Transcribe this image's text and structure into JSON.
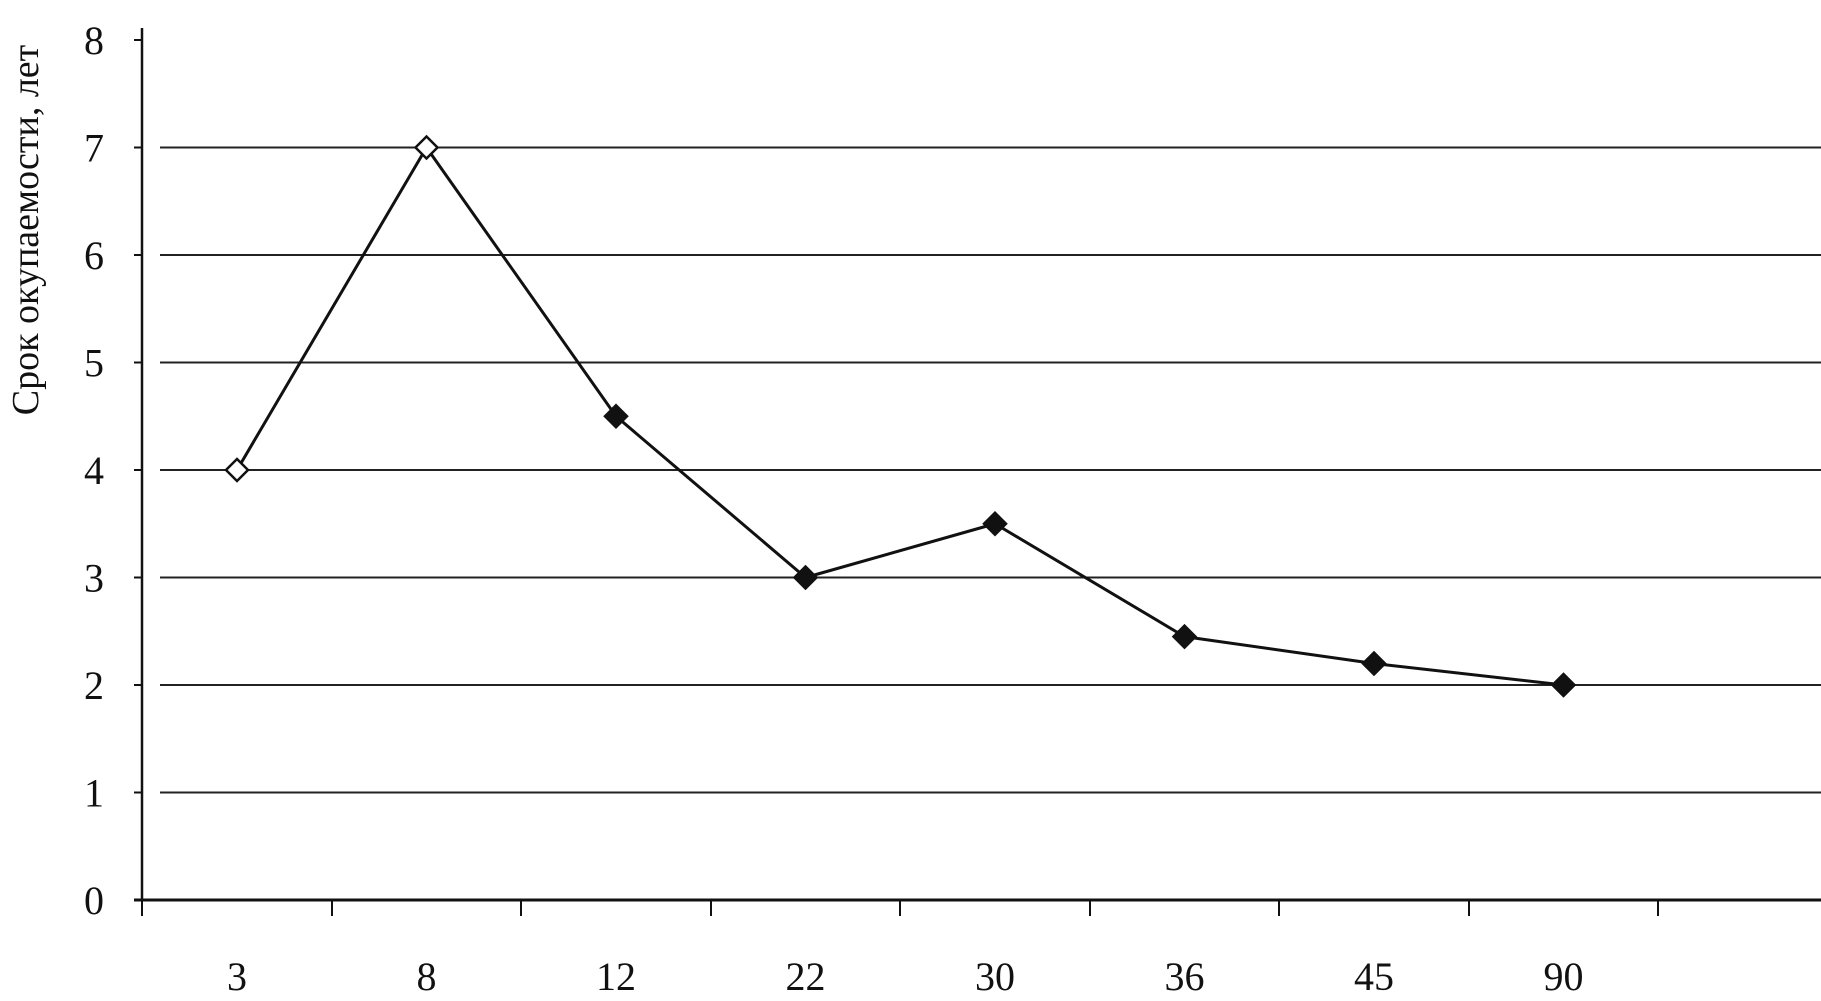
{
  "chart_data": {
    "type": "line",
    "title": "",
    "xlabel": "",
    "ylabel": "Срок окупаемости, лет",
    "categories": [
      "3",
      "8",
      "12",
      "22",
      "30",
      "36",
      "45",
      "90"
    ],
    "series": [
      {
        "values": [
          4,
          7,
          4.5,
          3,
          3.5,
          2.45,
          2.2,
          2.0
        ]
      }
    ],
    "ylim": [
      0,
      8
    ],
    "yticks": [
      "0",
      "1",
      "2",
      "3",
      "4",
      "5",
      "6",
      "7",
      "8"
    ],
    "grid": "horizontal",
    "legend": "none",
    "marker": "diamond",
    "colors": {
      "line": "#111111",
      "grid": "#222222",
      "axis": "#111111"
    }
  }
}
